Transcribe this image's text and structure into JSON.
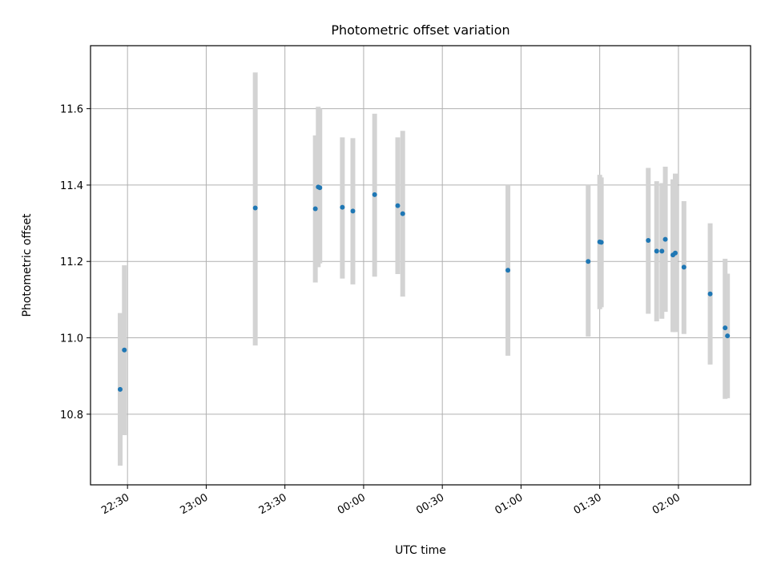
{
  "chart_data": {
    "type": "scatter",
    "title": "Photometric offset variation",
    "xlabel": "UTC time",
    "ylabel": "Photometric offset",
    "grid": true,
    "x_ticks": [
      {
        "value": 0,
        "label": "22:30"
      },
      {
        "value": 30,
        "label": "23:00"
      },
      {
        "value": 60,
        "label": "23:30"
      },
      {
        "value": 90,
        "label": "00:00"
      },
      {
        "value": 120,
        "label": "00:30"
      },
      {
        "value": 150,
        "label": "01:00"
      },
      {
        "value": 180,
        "label": "01:30"
      },
      {
        "value": 210,
        "label": "02:00"
      }
    ],
    "y_ticks": [
      {
        "value": 10.8,
        "label": "10.8"
      },
      {
        "value": 11.0,
        "label": "11.0"
      },
      {
        "value": 11.2,
        "label": "11.2"
      },
      {
        "value": 11.4,
        "label": "11.4"
      },
      {
        "value": 11.6,
        "label": "11.6"
      }
    ],
    "xlim": [
      -14.1,
      237.5
    ],
    "ylim": [
      10.615,
      11.765
    ],
    "x_time_origin": "22:30",
    "colors": {
      "point": "#1f77b4",
      "errorbar": "#d3d3d3"
    },
    "series": [
      {
        "marker": "point",
        "points": [
          {
            "x": -2.8,
            "y": 10.865,
            "yerr_low": 10.665,
            "yerr_high": 11.065
          },
          {
            "x": -1.2,
            "y": 10.968,
            "yerr_low": 10.745,
            "yerr_high": 11.19
          },
          {
            "x": 48.7,
            "y": 11.34,
            "yerr_low": 10.98,
            "yerr_high": 11.695
          },
          {
            "x": 71.6,
            "y": 11.338,
            "yerr_low": 11.145,
            "yerr_high": 11.53
          },
          {
            "x": 72.7,
            "y": 11.395,
            "yerr_low": 11.185,
            "yerr_high": 11.605
          },
          {
            "x": 73.3,
            "y": 11.393,
            "yerr_low": 11.195,
            "yerr_high": 11.6
          },
          {
            "x": 81.9,
            "y": 11.342,
            "yerr_low": 11.155,
            "yerr_high": 11.525
          },
          {
            "x": 85.9,
            "y": 11.332,
            "yerr_low": 11.14,
            "yerr_high": 11.523
          },
          {
            "x": 94.2,
            "y": 11.375,
            "yerr_low": 11.16,
            "yerr_high": 11.587
          },
          {
            "x": 103.0,
            "y": 11.346,
            "yerr_low": 11.167,
            "yerr_high": 11.525
          },
          {
            "x": 104.9,
            "y": 11.325,
            "yerr_low": 11.108,
            "yerr_high": 11.542
          },
          {
            "x": 145.0,
            "y": 11.177,
            "yerr_low": 10.953,
            "yerr_high": 11.4
          },
          {
            "x": 175.6,
            "y": 11.2,
            "yerr_low": 11.003,
            "yerr_high": 11.4
          },
          {
            "x": 180.0,
            "y": 11.251,
            "yerr_low": 11.075,
            "yerr_high": 11.427
          },
          {
            "x": 180.6,
            "y": 11.25,
            "yerr_low": 11.08,
            "yerr_high": 11.42
          },
          {
            "x": 198.5,
            "y": 11.255,
            "yerr_low": 11.063,
            "yerr_high": 11.445
          },
          {
            "x": 201.7,
            "y": 11.227,
            "yerr_low": 11.043,
            "yerr_high": 11.41
          },
          {
            "x": 203.7,
            "y": 11.227,
            "yerr_low": 11.05,
            "yerr_high": 11.405
          },
          {
            "x": 205.0,
            "y": 11.258,
            "yerr_low": 11.068,
            "yerr_high": 11.448
          },
          {
            "x": 207.9,
            "y": 11.217,
            "yerr_low": 11.015,
            "yerr_high": 11.415
          },
          {
            "x": 208.8,
            "y": 11.222,
            "yerr_low": 11.015,
            "yerr_high": 11.43
          },
          {
            "x": 212.1,
            "y": 11.185,
            "yerr_low": 11.01,
            "yerr_high": 11.358
          },
          {
            "x": 222.1,
            "y": 11.115,
            "yerr_low": 10.93,
            "yerr_high": 11.3
          },
          {
            "x": 227.8,
            "y": 11.026,
            "yerr_low": 10.84,
            "yerr_high": 11.207
          },
          {
            "x": 228.7,
            "y": 11.005,
            "yerr_low": 10.842,
            "yerr_high": 11.168
          }
        ]
      }
    ]
  }
}
